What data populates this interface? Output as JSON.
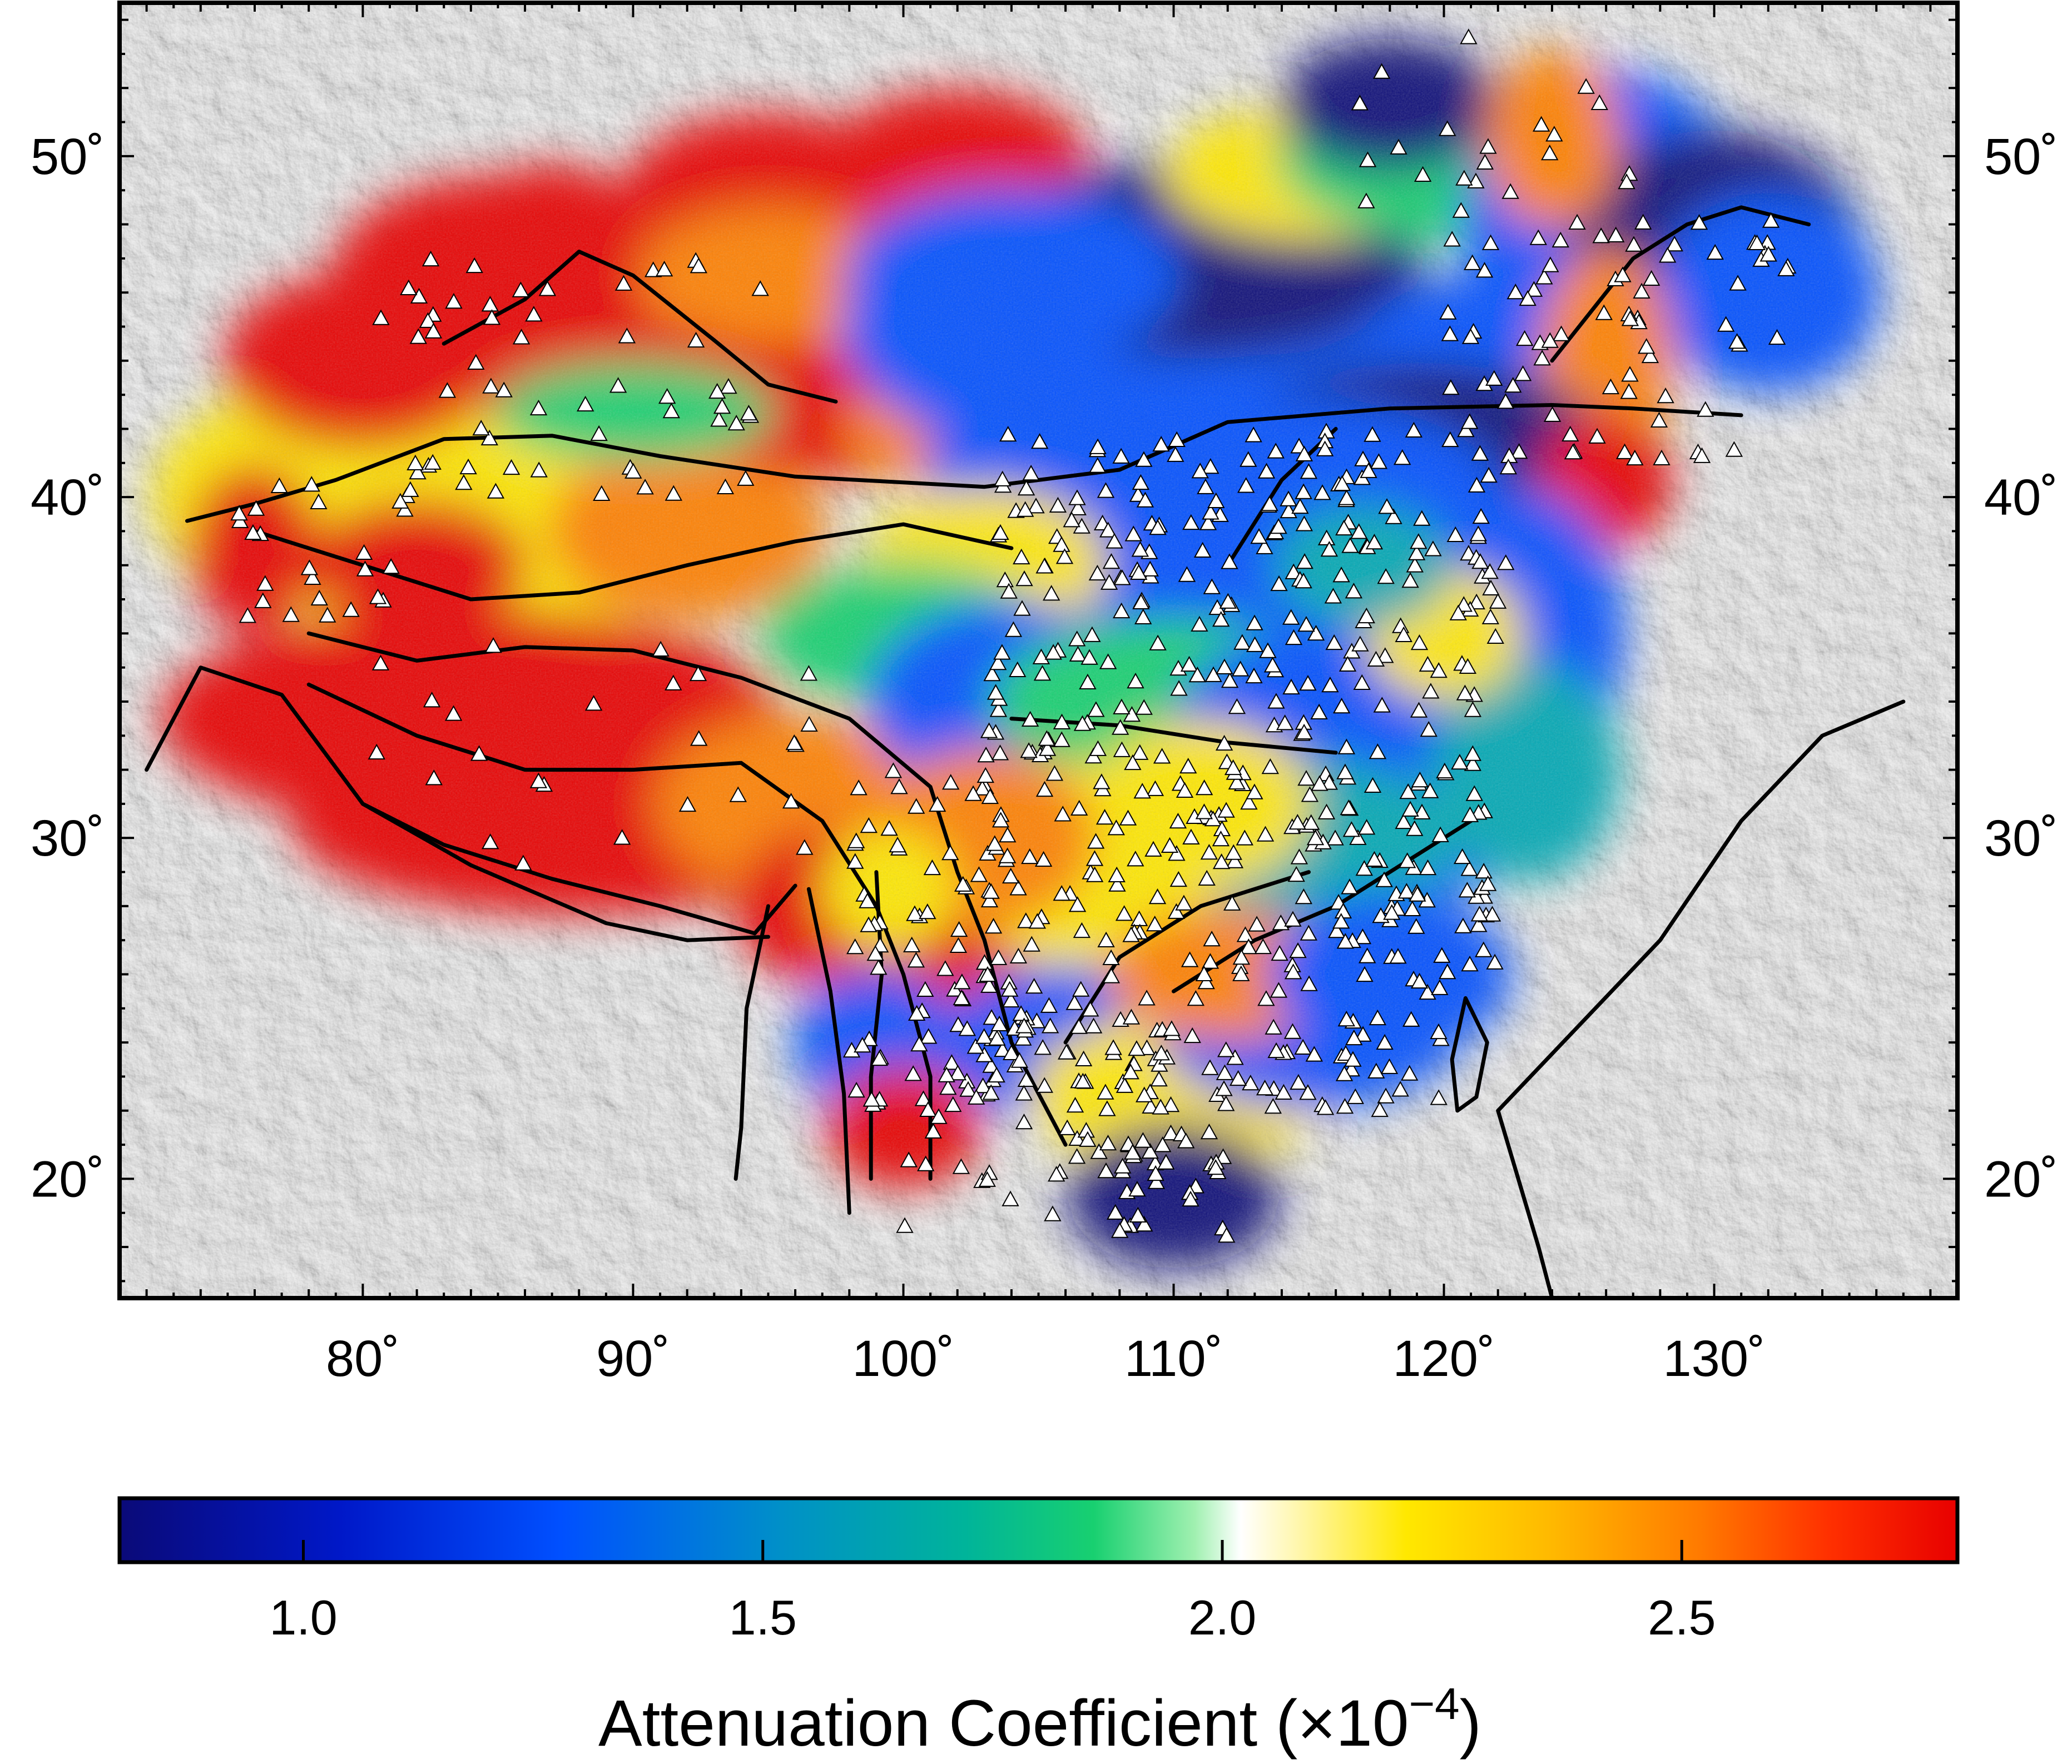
{
  "map": {
    "lon_range": [
      71,
      139
    ],
    "lat_range": [
      16.5,
      54.5
    ],
    "lon_ticks": [
      {
        "value": 80,
        "label": "80˚"
      },
      {
        "value": 90,
        "label": "90˚"
      },
      {
        "value": 100,
        "label": "100˚"
      },
      {
        "value": 110,
        "label": "110˚"
      },
      {
        "value": 120,
        "label": "120˚"
      },
      {
        "value": 130,
        "label": "130˚"
      }
    ],
    "lat_ticks": [
      {
        "value": 20,
        "label": "20˚"
      },
      {
        "value": 30,
        "label": "30˚"
      },
      {
        "value": 40,
        "label": "40˚"
      },
      {
        "value": 50,
        "label": "50˚"
      }
    ],
    "background": "shaded-relief",
    "overlay": "attenuation-coefficient-grid",
    "station_symbol": "white-triangle",
    "boundary_color": "#000000"
  },
  "colorbar": {
    "range": [
      0.8,
      2.8
    ],
    "ticks": [
      {
        "value": 1.0,
        "label": "1.0"
      },
      {
        "value": 1.5,
        "label": "1.5"
      },
      {
        "value": 2.0,
        "label": "2.0"
      },
      {
        "value": 2.5,
        "label": "2.5"
      }
    ],
    "title": "Attenuation Coefficient (×10",
    "exponent": "−4",
    "title_close": ")",
    "colors": {
      "low": "#0a0a78",
      "blue": "#0050ff",
      "teal": "#00a8b4",
      "green": "#18d070",
      "white": "#ffffff",
      "yellow": "#ffe800",
      "orange": "#ff8000",
      "red": "#e80000"
    }
  }
}
